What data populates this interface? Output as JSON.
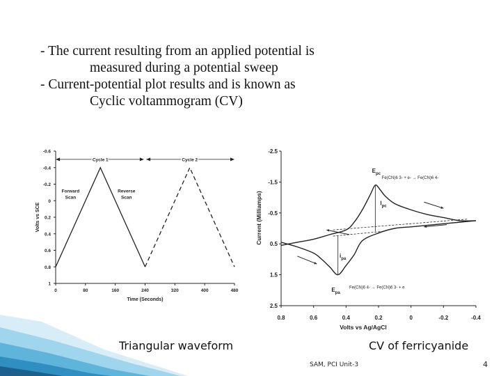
{
  "text": {
    "bullet1_line1": "- The current resulting from an applied potential is",
    "bullet1_line2": "measured during a potential sweep",
    "bullet2_line1": "- Current-potential plot results and is known as",
    "bullet2_line2": "Cyclic voltammogram (CV)"
  },
  "captions": {
    "left": "Triangular waveform",
    "right": "CV of ferricyanide"
  },
  "footer": {
    "center": "SAM, PCI Unit-3",
    "page": "4"
  },
  "chart_data": [
    {
      "type": "line",
      "xlabel": "Time (Seconds)",
      "ylabel": "Volts vs SCE",
      "xticks": [
        "0",
        "80",
        "160",
        "240",
        "320",
        "400",
        "480"
      ],
      "yticks": [
        "-0.6",
        "-0.4",
        "-0.2",
        "0",
        "0.2",
        "0.4",
        "0.6",
        "0.8",
        "1"
      ],
      "xlim": [
        0,
        480
      ],
      "ylim": [
        1.0,
        -0.6
      ],
      "series": [
        {
          "name": "Cycle 1",
          "x": [
            0,
            120,
            240
          ],
          "y": [
            0.8,
            -0.4,
            0.8
          ]
        },
        {
          "name": "Cycle 2",
          "x": [
            240,
            360,
            480
          ],
          "y": [
            0.8,
            -0.4,
            0.8
          ]
        }
      ],
      "annotations": [
        {
          "text": "Cycle 1"
        },
        {
          "text": "Cycle 2"
        },
        {
          "text": "Forward\nScan"
        },
        {
          "text": "Reverse\nScan"
        }
      ]
    },
    {
      "type": "line",
      "xlabel": "Volts vs Ag/AgCl",
      "ylabel": "Current (Milliamps)",
      "xticks": [
        "0.8",
        "0.6",
        "0.4",
        "0.2",
        "0",
        "-0.2",
        "-0.4"
      ],
      "yticks": [
        "-2.5",
        "-1.5",
        "-0.5",
        "0.5",
        "1.5",
        "2.5"
      ],
      "xlim": [
        0.8,
        -0.4
      ],
      "ylim": [
        -2.5,
        2.5
      ],
      "forward_sweep": {
        "x": [
          0.8,
          0.7,
          0.6,
          0.5,
          0.4,
          0.35,
          0.3,
          0.25,
          0.22,
          0.19,
          0.16,
          0.1,
          0.0,
          -0.1,
          -0.2,
          -0.3,
          -0.4
        ],
        "y": [
          0.55,
          0.45,
          0.35,
          0.2,
          0.05,
          -0.2,
          -0.6,
          -1.1,
          -1.4,
          -1.25,
          -1.05,
          -0.8,
          -0.6,
          -0.45,
          -0.35,
          -0.25,
          -0.25
        ]
      },
      "reverse_sweep": {
        "x": [
          -0.4,
          -0.3,
          -0.2,
          -0.1,
          0.0,
          0.1,
          0.2,
          0.3,
          0.35,
          0.4,
          0.45,
          0.5,
          0.55,
          0.6,
          0.7,
          0.8
        ],
        "y": [
          -0.25,
          -0.2,
          -0.15,
          -0.1,
          -0.05,
          0.0,
          0.15,
          0.4,
          0.85,
          1.2,
          1.5,
          1.25,
          1.0,
          0.8,
          0.6,
          0.45
        ]
      },
      "annotations": [
        {
          "text": "E",
          "sub": "pc"
        },
        {
          "text": "I",
          "sub": "pc"
        },
        {
          "text": "i",
          "sub": "pa"
        },
        {
          "text": "E",
          "sub": "pa"
        },
        {
          "text": "Fe(CN)6 3- + e- → Fe(CN)6 4-"
        },
        {
          "text": "Fe(CN)6 4- → Fe(CN)6 3- + e"
        }
      ]
    }
  ],
  "colors": {
    "line": "#222222",
    "blue_accent": "#1f5f8b",
    "light_blue": "#9fd6ee"
  }
}
